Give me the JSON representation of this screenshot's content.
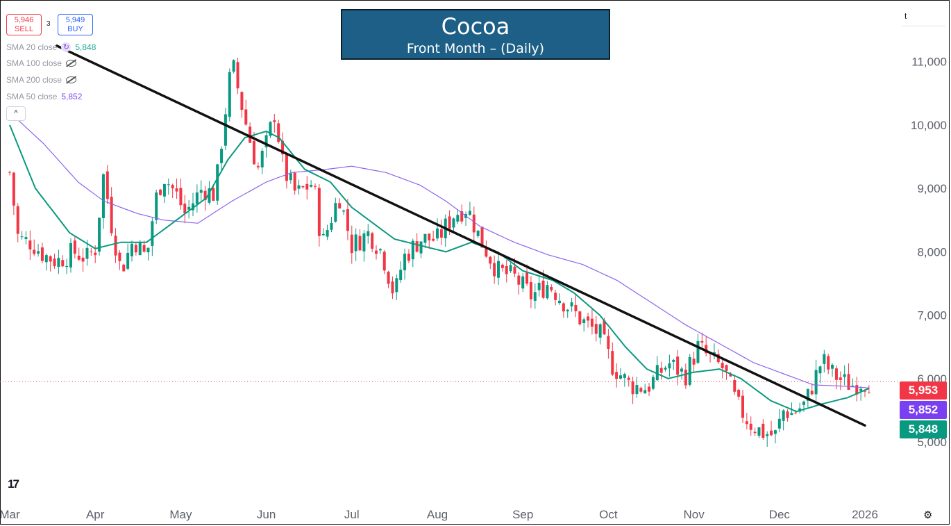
{
  "title": {
    "main": "Cocoa",
    "sub": "Front Month – (Daily)"
  },
  "trade": {
    "sell_price": "5,946",
    "sell_label": "SELL",
    "spread": "3",
    "buy_price": "5,949",
    "buy_label": "BUY"
  },
  "indicators": [
    {
      "label": "SMA 20 close",
      "value": "5,848",
      "color": "#26a69a",
      "icon": "cycle-icon"
    },
    {
      "label": "SMA 100 close",
      "value": "",
      "color": "#9598a1",
      "icon": "eye-hidden-icon"
    },
    {
      "label": "SMA 200 close",
      "value": "",
      "color": "#9598a1",
      "icon": "eye-hidden-icon"
    },
    {
      "label": "SMA 50 close",
      "value": "5,852",
      "color": "#7b4df0",
      "icon": ""
    }
  ],
  "collapse_glyph": "^",
  "scale_button": "t",
  "tv_logo": "17",
  "settings_glyph": "⚙",
  "price_labels": {
    "last": {
      "text": "5,953",
      "color": "#f23645"
    },
    "sma50": {
      "text": "5,852",
      "color": "#7b3ff2"
    },
    "sma20": {
      "text": "5,848",
      "color": "#089981"
    }
  },
  "chart_data": {
    "type": "candlestick",
    "title": "Cocoa",
    "subtitle": "Front Month – (Daily)",
    "y_ticks": [
      5000,
      6000,
      7000,
      8000,
      9000,
      10000,
      11000
    ],
    "y_tick_labels": [
      "5,000",
      "6,000",
      "7,000",
      "8,000",
      "9,000",
      "10,000",
      "11,000"
    ],
    "x_tick_labels": [
      "Mar",
      "Apr",
      "May",
      "Jun",
      "Jul",
      "Aug",
      "Sep",
      "Oct",
      "Nov",
      "Dec",
      "2026"
    ],
    "ylim": [
      4080,
      11840
    ],
    "colors": {
      "up": "#089981",
      "down": "#f23645",
      "sma20": "#089981",
      "sma50": "#8d63f0",
      "trendline": "#111111"
    },
    "last_price": 5953,
    "trendline": [
      {
        "x": 0.55,
        "y": 11250
      },
      {
        "x": 10.0,
        "y": 5260
      }
    ],
    "closes": [
      {
        "m": 0.0,
        "v": 9250
      },
      {
        "m": 0.1,
        "v": 8200
      },
      {
        "m": 0.25,
        "v": 8150
      },
      {
        "m": 0.4,
        "v": 7950
      },
      {
        "m": 0.55,
        "v": 7850
      },
      {
        "m": 0.75,
        "v": 8000
      },
      {
        "m": 0.9,
        "v": 7900
      },
      {
        "m": 1.0,
        "v": 8050
      },
      {
        "m": 1.1,
        "v": 9250
      },
      {
        "m": 1.18,
        "v": 8500
      },
      {
        "m": 1.3,
        "v": 7700
      },
      {
        "m": 1.45,
        "v": 8200
      },
      {
        "m": 1.6,
        "v": 7900
      },
      {
        "m": 1.7,
        "v": 8800
      },
      {
        "m": 1.8,
        "v": 9200
      },
      {
        "m": 1.95,
        "v": 8900
      },
      {
        "m": 2.05,
        "v": 8600
      },
      {
        "m": 2.25,
        "v": 9000
      },
      {
        "m": 2.4,
        "v": 8900
      },
      {
        "m": 2.5,
        "v": 10000
      },
      {
        "m": 2.6,
        "v": 11000
      },
      {
        "m": 2.68,
        "v": 10500
      },
      {
        "m": 2.8,
        "v": 9800
      },
      {
        "m": 2.9,
        "v": 9300
      },
      {
        "m": 3.0,
        "v": 9700
      },
      {
        "m": 3.1,
        "v": 10200
      },
      {
        "m": 3.2,
        "v": 9300
      },
      {
        "m": 3.35,
        "v": 8900
      },
      {
        "m": 3.55,
        "v": 9100
      },
      {
        "m": 3.65,
        "v": 8100
      },
      {
        "m": 3.85,
        "v": 8900
      },
      {
        "m": 4.0,
        "v": 8100
      },
      {
        "m": 4.2,
        "v": 8300
      },
      {
        "m": 4.35,
        "v": 8000
      },
      {
        "m": 4.5,
        "v": 7300
      },
      {
        "m": 4.6,
        "v": 7900
      },
      {
        "m": 4.8,
        "v": 8200
      },
      {
        "m": 5.0,
        "v": 8200
      },
      {
        "m": 5.2,
        "v": 8600
      },
      {
        "m": 5.35,
        "v": 8700
      },
      {
        "m": 5.5,
        "v": 8200
      },
      {
        "m": 5.7,
        "v": 7700
      },
      {
        "m": 5.9,
        "v": 7600
      },
      {
        "m": 6.1,
        "v": 7300
      },
      {
        "m": 6.3,
        "v": 7500
      },
      {
        "m": 6.45,
        "v": 7250
      },
      {
        "m": 6.7,
        "v": 6900
      },
      {
        "m": 6.9,
        "v": 6700
      },
      {
        "m": 7.05,
        "v": 6200
      },
      {
        "m": 7.25,
        "v": 5900
      },
      {
        "m": 7.45,
        "v": 5850
      },
      {
        "m": 7.7,
        "v": 6250
      },
      {
        "m": 7.9,
        "v": 6050
      },
      {
        "m": 8.05,
        "v": 6500
      },
      {
        "m": 8.2,
        "v": 6300
      },
      {
        "m": 8.35,
        "v": 6150
      },
      {
        "m": 8.5,
        "v": 5600
      },
      {
        "m": 8.65,
        "v": 5300
      },
      {
        "m": 8.8,
        "v": 5150
      },
      {
        "m": 8.95,
        "v": 5100
      },
      {
        "m": 9.05,
        "v": 5500
      },
      {
        "m": 9.15,
        "v": 5450
      },
      {
        "m": 9.3,
        "v": 5600
      },
      {
        "m": 9.4,
        "v": 5950
      },
      {
        "m": 9.5,
        "v": 6300
      },
      {
        "m": 9.6,
        "v": 6100
      },
      {
        "m": 9.75,
        "v": 5950
      },
      {
        "m": 9.85,
        "v": 5900
      },
      {
        "m": 9.95,
        "v": 5950
      },
      {
        "m": 10.05,
        "v": 5953
      }
    ],
    "sma20": [
      {
        "m": 0.0,
        "v": 10000
      },
      {
        "m": 0.3,
        "v": 9000
      },
      {
        "m": 0.7,
        "v": 8300
      },
      {
        "m": 1.0,
        "v": 8050
      },
      {
        "m": 1.3,
        "v": 8150
      },
      {
        "m": 1.6,
        "v": 8150
      },
      {
        "m": 2.0,
        "v": 8550
      },
      {
        "m": 2.3,
        "v": 8850
      },
      {
        "m": 2.55,
        "v": 9450
      },
      {
        "m": 2.75,
        "v": 9800
      },
      {
        "m": 3.0,
        "v": 9900
      },
      {
        "m": 3.15,
        "v": 9800
      },
      {
        "m": 3.45,
        "v": 9300
      },
      {
        "m": 3.75,
        "v": 9100
      },
      {
        "m": 4.0,
        "v": 8700
      },
      {
        "m": 4.3,
        "v": 8400
      },
      {
        "m": 4.5,
        "v": 8200
      },
      {
        "m": 4.8,
        "v": 8100
      },
      {
        "m": 5.1,
        "v": 8000
      },
      {
        "m": 5.4,
        "v": 8150
      },
      {
        "m": 5.7,
        "v": 8000
      },
      {
        "m": 6.0,
        "v": 7700
      },
      {
        "m": 6.35,
        "v": 7550
      },
      {
        "m": 6.6,
        "v": 7350
      },
      {
        "m": 6.9,
        "v": 7000
      },
      {
        "m": 7.2,
        "v": 6500
      },
      {
        "m": 7.45,
        "v": 6150
      },
      {
        "m": 7.7,
        "v": 6000
      },
      {
        "m": 8.0,
        "v": 6100
      },
      {
        "m": 8.3,
        "v": 6150
      },
      {
        "m": 8.55,
        "v": 6000
      },
      {
        "m": 8.9,
        "v": 5650
      },
      {
        "m": 9.2,
        "v": 5480
      },
      {
        "m": 9.5,
        "v": 5600
      },
      {
        "m": 9.8,
        "v": 5700
      },
      {
        "m": 10.05,
        "v": 5848
      }
    ],
    "sma50": [
      {
        "m": 0.0,
        "v": 10200
      },
      {
        "m": 0.4,
        "v": 9700
      },
      {
        "m": 0.8,
        "v": 9100
      },
      {
        "m": 1.1,
        "v": 8800
      },
      {
        "m": 1.5,
        "v": 8600
      },
      {
        "m": 1.8,
        "v": 8500
      },
      {
        "m": 2.2,
        "v": 8450
      },
      {
        "m": 2.6,
        "v": 8800
      },
      {
        "m": 3.0,
        "v": 9100
      },
      {
        "m": 3.3,
        "v": 9250
      },
      {
        "m": 3.7,
        "v": 9300
      },
      {
        "m": 4.0,
        "v": 9350
      },
      {
        "m": 4.4,
        "v": 9250
      },
      {
        "m": 4.8,
        "v": 9050
      },
      {
        "m": 5.1,
        "v": 8800
      },
      {
        "m": 5.5,
        "v": 8400
      },
      {
        "m": 5.9,
        "v": 8150
      },
      {
        "m": 6.3,
        "v": 7950
      },
      {
        "m": 6.7,
        "v": 7800
      },
      {
        "m": 7.1,
        "v": 7550
      },
      {
        "m": 7.5,
        "v": 7200
      },
      {
        "m": 7.9,
        "v": 6850
      },
      {
        "m": 8.3,
        "v": 6550
      },
      {
        "m": 8.7,
        "v": 6250
      },
      {
        "m": 9.1,
        "v": 6050
      },
      {
        "m": 9.4,
        "v": 5900
      },
      {
        "m": 9.75,
        "v": 5880
      },
      {
        "m": 10.05,
        "v": 5852
      }
    ]
  }
}
